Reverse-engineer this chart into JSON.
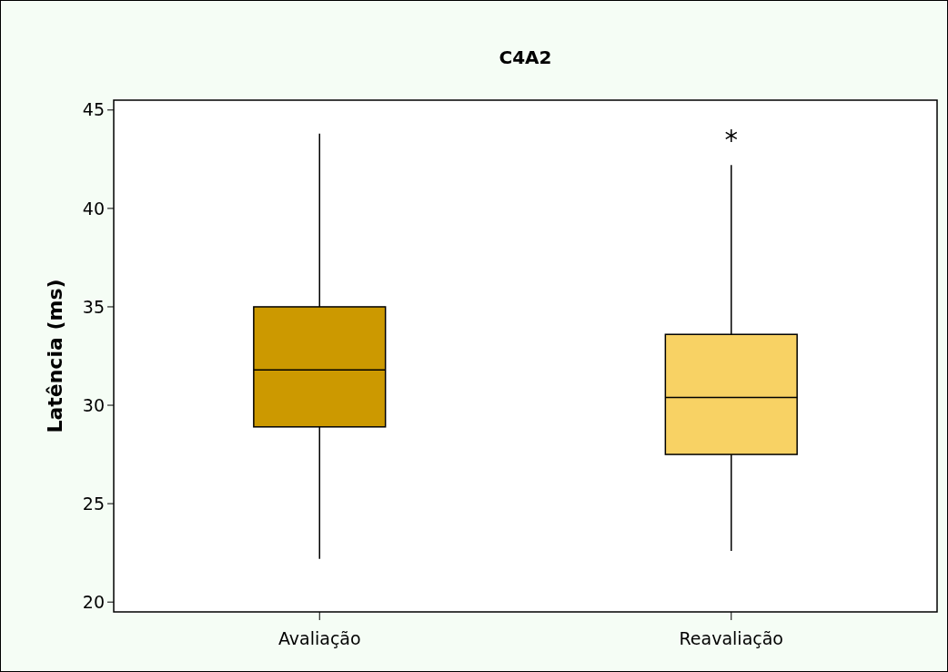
{
  "chart_data": {
    "type": "box",
    "title": "C4A2",
    "ylabel": "Latência (ms)",
    "categories": [
      "Avaliação",
      "Reavaliação"
    ],
    "ylim": [
      19.5,
      45.5
    ],
    "yticks": [
      20,
      25,
      30,
      35,
      40,
      45
    ],
    "colors": [
      "#cc9900",
      "#f8d264"
    ],
    "boxes": [
      {
        "low": 22.2,
        "q1": 28.9,
        "median": 31.8,
        "q3": 35.0,
        "high": 43.8
      },
      {
        "low": 22.6,
        "q1": 27.5,
        "median": 30.4,
        "q3": 33.6,
        "high": 42.2,
        "outliers": [
          43.7
        ]
      }
    ]
  }
}
